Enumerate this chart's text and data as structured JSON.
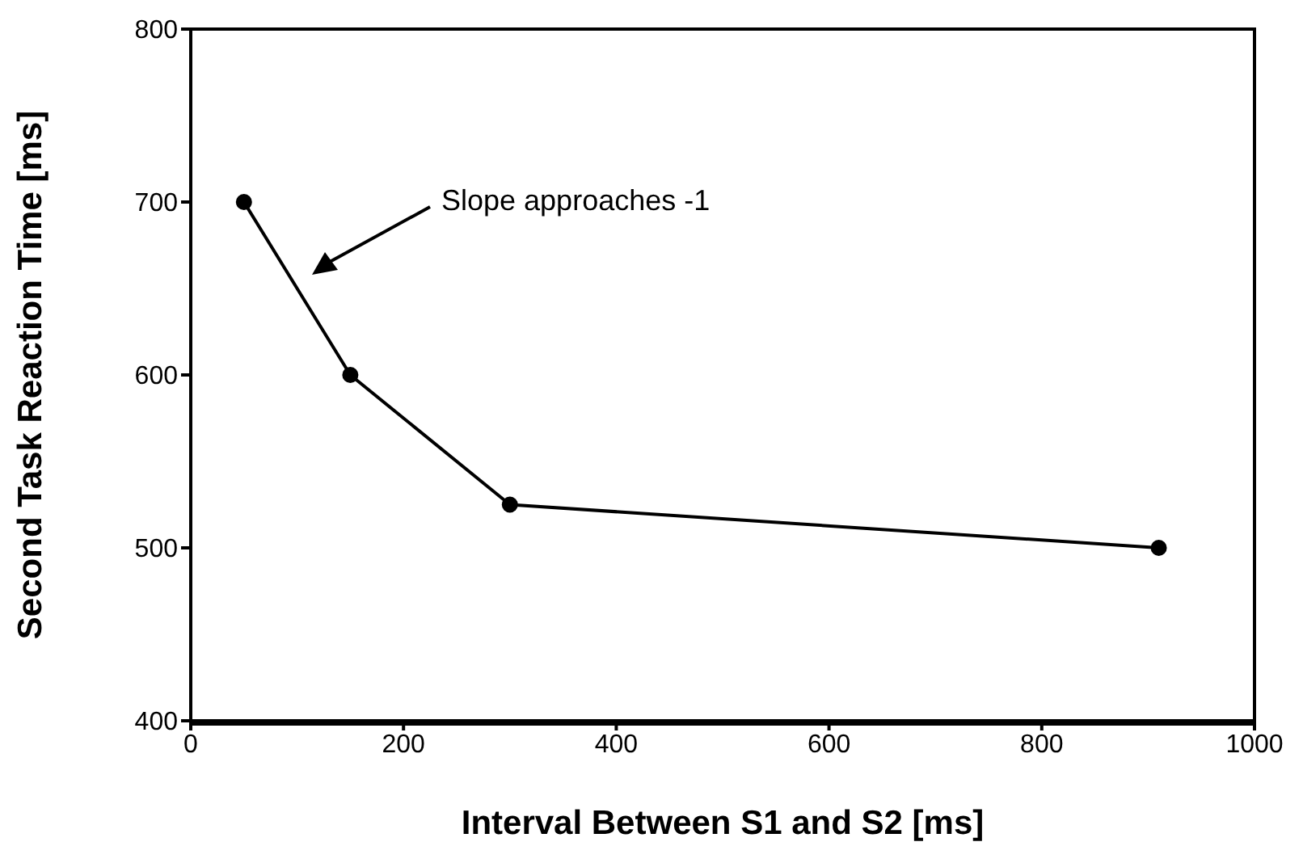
{
  "chart_data": {
    "type": "line",
    "xlabel": "Interval Between S1 and S2 [ms]",
    "ylabel": "Second Task Reaction Time [ms]",
    "x": [
      50,
      150,
      300,
      910
    ],
    "series": [
      {
        "color": "#000000",
        "values": [
          700,
          600,
          525,
          500
        ]
      }
    ],
    "xlim": [
      0,
      1000
    ],
    "xticks": [
      0,
      200,
      400,
      600,
      800,
      1000
    ],
    "ylim": [
      400,
      800
    ],
    "yticks": [
      400,
      500,
      600,
      700,
      800
    ],
    "grid": false,
    "legend": false,
    "marker": "circle",
    "line_style": "solid",
    "annotations": [
      "Slope approaches -1"
    ]
  }
}
